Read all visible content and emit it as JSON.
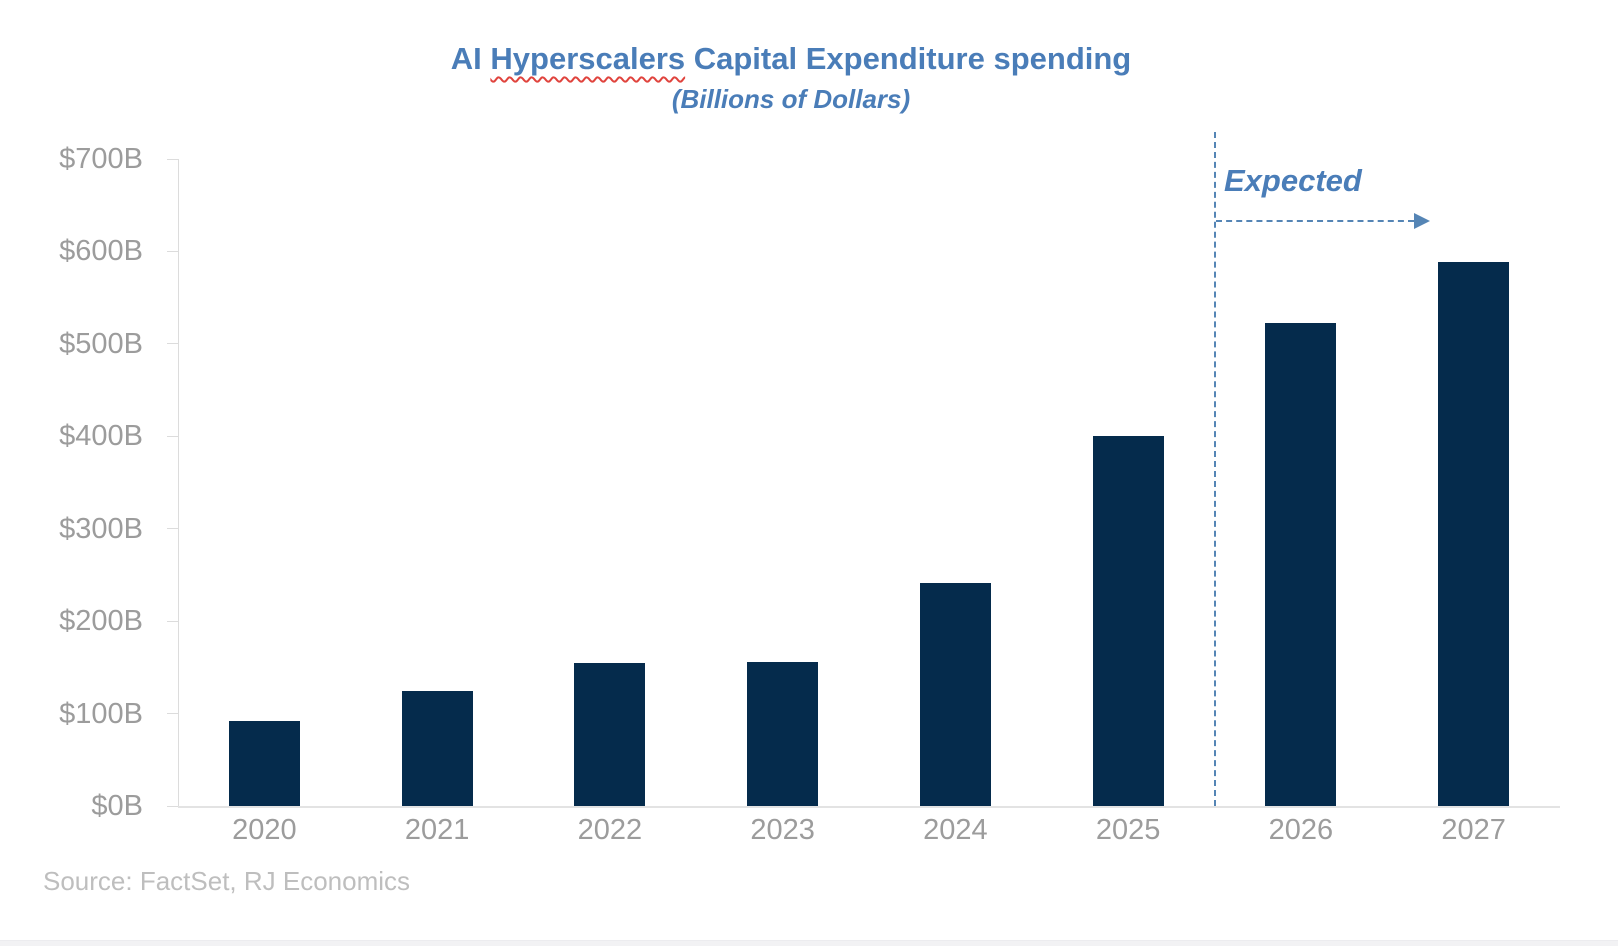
{
  "title": {
    "prefix": "AI ",
    "squiggle_word": "Hyperscalers",
    "suffix": " Capital Expenditure spending",
    "subtitle": "(Billions of Dollars)"
  },
  "annotation": {
    "expected_label": "Expected"
  },
  "source": {
    "text": "Source: FactSet, RJ Economics"
  },
  "colors": {
    "bar": "#052B4C",
    "accent_blue": "#4A7DB8",
    "dashed_line_blue": "#5585B5",
    "axis_text_gray": "#9C9C9C",
    "source_text_gray": "#BEBEBE",
    "axis_line_gray": "#DCDCDC",
    "squiggle_red": "#E0433D"
  },
  "chart_data": {
    "type": "bar",
    "title": "AI Hyperscalers Capital Expenditure spending",
    "subtitle": "(Billions of Dollars)",
    "xlabel": "",
    "ylabel": "",
    "unit": "billions of US dollars",
    "categories": [
      "2020",
      "2021",
      "2022",
      "2023",
      "2024",
      "2025",
      "2026",
      "2027"
    ],
    "values": [
      92,
      124,
      155,
      156,
      241,
      400,
      523,
      589
    ],
    "ylim": [
      0,
      700
    ],
    "ytick_step": 100,
    "ytick_labels": [
      "$0B",
      "$100B",
      "$200B",
      "$300B",
      "$400B",
      "$500B",
      "$600B",
      "$700B"
    ],
    "grid": false,
    "legend": false,
    "annotation": {
      "label": "Expected",
      "separator_after_category": "2025",
      "applies_to": [
        "2026",
        "2027"
      ]
    }
  }
}
